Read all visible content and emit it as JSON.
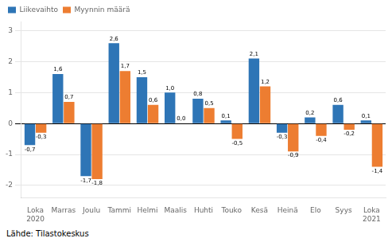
{
  "chart_data": {
    "type": "bar",
    "categories": [
      "Loka\n2020",
      "Marras",
      "Joulu",
      "Tammi",
      "Helmi",
      "Maalis",
      "Huhti",
      "Touko",
      "Kesä",
      "Heinä",
      "Elo",
      "Syys",
      "Loka\n2021"
    ],
    "series": [
      {
        "name": "Liikevaihto",
        "color": "#2E75B6",
        "values": [
          -0.7,
          1.6,
          -1.7,
          2.6,
          1.5,
          1.0,
          0.8,
          0.1,
          2.1,
          -0.3,
          0.2,
          0.6,
          0.1
        ],
        "value_labels": [
          "-0,7",
          "1,6",
          "-1,7",
          "2,6",
          "1,5",
          "1,0",
          "0,8",
          "0,1",
          "2,1",
          "-0,3",
          "0,2",
          "0,6",
          "0,1"
        ]
      },
      {
        "name": "Myynnin määrä",
        "color": "#ED7D31",
        "values": [
          -0.3,
          0.7,
          -1.8,
          1.7,
          0.6,
          0.0,
          0.5,
          -0.5,
          1.2,
          -0.9,
          -0.4,
          -0.2,
          -1.4
        ],
        "value_labels": [
          "-0,3",
          "0,7",
          "-1,8",
          "1,7",
          "0,6",
          "0,0",
          "0,5",
          "-0,5",
          "1,2",
          "-0,9",
          "-0,4",
          "-0,2",
          "-1,4"
        ]
      }
    ],
    "ylim": [
      -2.4,
      3.3
    ],
    "yticks": [
      -2,
      -1,
      0,
      1,
      2,
      3
    ],
    "grid": true,
    "legend": "upper left",
    "data_labels": true,
    "annotations": [
      "Lähde: Tilastokeskus"
    ]
  }
}
